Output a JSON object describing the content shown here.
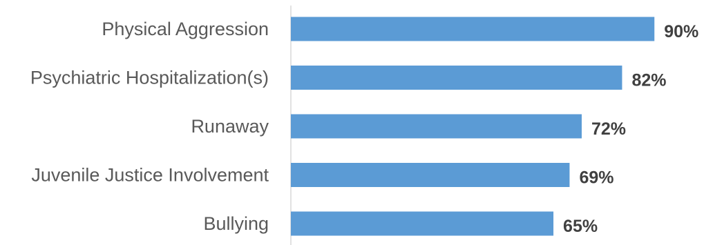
{
  "chart_data": {
    "type": "bar",
    "orientation": "horizontal",
    "categories": [
      "Physical Aggression",
      "Psychiatric Hospitalization(s)",
      "Runaway",
      "Juvenile Justice Involvement",
      "Bullying"
    ],
    "values": [
      90,
      82,
      72,
      69,
      65
    ],
    "value_labels": [
      "90%",
      "82%",
      "72%",
      "69%",
      "65%"
    ],
    "unit": "%",
    "title": "",
    "xlabel": "",
    "ylabel": "",
    "xlim": [
      0,
      100
    ],
    "grid": false,
    "legend": "none",
    "bar_color": "#5b9bd5",
    "axis_color": "#d9d9d9"
  }
}
